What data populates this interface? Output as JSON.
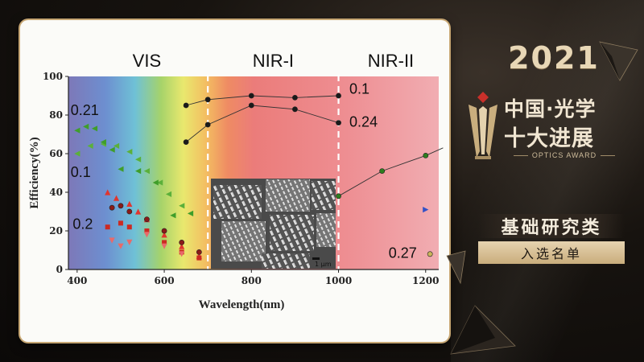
{
  "award": {
    "year": "2021",
    "title_line1": "中国·光学",
    "title_line2": "十大进展",
    "subtitle_en": "OPTICS AWARD",
    "category": "基础研究类",
    "status": "入选名单"
  },
  "colors": {
    "gold": "#c6a673",
    "red_series": "#d8302a",
    "green_series": "#3f9e2a",
    "black_series": "#1a1a1a"
  },
  "chart_data": {
    "type": "scatter",
    "title": "",
    "xlabel": "Wavelength(nm)",
    "ylabel": "Efficiency(%)",
    "xlim": [
      380,
      1230
    ],
    "ylim": [
      0,
      100
    ],
    "xticks": [
      400,
      600,
      800,
      1000,
      1200
    ],
    "yticks": [
      0,
      20,
      40,
      60,
      80,
      100
    ],
    "grid": false,
    "background": "visible spectrum gradient to pink",
    "regions": [
      {
        "label": "VIS",
        "x_center": 560
      },
      {
        "label": "NIR-I",
        "x_center": 850
      },
      {
        "label": "NIR-II",
        "x_center": 1120
      }
    ],
    "boundaries": [
      700,
      1000
    ],
    "annotations": [
      {
        "text": "0.21",
        "x": 385,
        "y": 80
      },
      {
        "text": "0.1",
        "x": 385,
        "y": 48
      },
      {
        "text": "0.2",
        "x": 390,
        "y": 21
      },
      {
        "text": "0.1",
        "x": 1025,
        "y": 91
      },
      {
        "text": "0.24",
        "x": 1025,
        "y": 74
      },
      {
        "text": "0.27",
        "x": 1115,
        "y": 6
      }
    ],
    "series": [
      {
        "values": [
          [
            650,
            85
          ],
          [
            700,
            88
          ],
          [
            800,
            90
          ],
          [
            900,
            89
          ],
          [
            1000,
            90
          ]
        ],
        "marker": "circle",
        "color": "#1a1a1a",
        "line": true
      },
      {
        "values": [
          [
            650,
            66
          ],
          [
            700,
            75
          ],
          [
            800,
            85
          ],
          [
            900,
            83
          ],
          [
            1000,
            76
          ]
        ],
        "marker": "circle",
        "color": "#1a1a1a",
        "line": true
      },
      {
        "values": [
          [
            1000,
            38
          ],
          [
            1100,
            51
          ],
          [
            1200,
            59
          ],
          [
            1240,
            63
          ]
        ],
        "marker": "circle",
        "color": "#2e7d1e",
        "line": true
      },
      {
        "values": [
          [
            400,
            60
          ],
          [
            430,
            64
          ],
          [
            460,
            65
          ],
          [
            490,
            64
          ],
          [
            520,
            61
          ],
          [
            540,
            57
          ],
          [
            560,
            51
          ],
          [
            590,
            45
          ],
          [
            610,
            39
          ],
          [
            640,
            33
          ]
        ],
        "marker": "triangle-left",
        "color": "#5bb03a",
        "line": false
      },
      {
        "values": [
          [
            400,
            72
          ],
          [
            420,
            74
          ],
          [
            440,
            73
          ],
          [
            460,
            66
          ],
          [
            480,
            62
          ],
          [
            500,
            52
          ],
          [
            540,
            51
          ],
          [
            580,
            45
          ],
          [
            620,
            28
          ],
          [
            660,
            29
          ]
        ],
        "marker": "triangle-left",
        "color": "#3f9e2a",
        "line": false
      },
      {
        "values": [
          [
            470,
            40
          ],
          [
            490,
            37
          ],
          [
            520,
            34
          ],
          [
            540,
            30
          ],
          [
            560,
            26
          ],
          [
            600,
            18
          ],
          [
            640,
            12
          ],
          [
            680,
            7
          ]
        ],
        "marker": "triangle-up",
        "color": "#e0352e",
        "line": false
      },
      {
        "values": [
          [
            470,
            22
          ],
          [
            500,
            24
          ],
          [
            520,
            22
          ],
          [
            560,
            20
          ],
          [
            600,
            14
          ],
          [
            640,
            9
          ],
          [
            680,
            6
          ]
        ],
        "marker": "square",
        "color": "#cc2a22",
        "line": false
      },
      {
        "values": [
          [
            480,
            15
          ],
          [
            500,
            12
          ],
          [
            520,
            14
          ],
          [
            560,
            18
          ],
          [
            600,
            12
          ],
          [
            640,
            8
          ]
        ],
        "marker": "triangle-down",
        "color": "#e86a6a",
        "line": false
      },
      {
        "values": [
          [
            480,
            32
          ],
          [
            500,
            33
          ],
          [
            520,
            30
          ],
          [
            560,
            26
          ],
          [
            600,
            20
          ],
          [
            640,
            14
          ],
          [
            680,
            9
          ]
        ],
        "marker": "circle",
        "color": "#8a1a18",
        "line": false
      },
      {
        "values": [
          [
            1200,
            31
          ]
        ],
        "marker": "triangle-right",
        "color": "#3352c6",
        "line": false
      },
      {
        "values": [
          [
            1210,
            8
          ]
        ],
        "marker": "circle",
        "color": "#c9b55a",
        "line": false
      }
    ]
  }
}
